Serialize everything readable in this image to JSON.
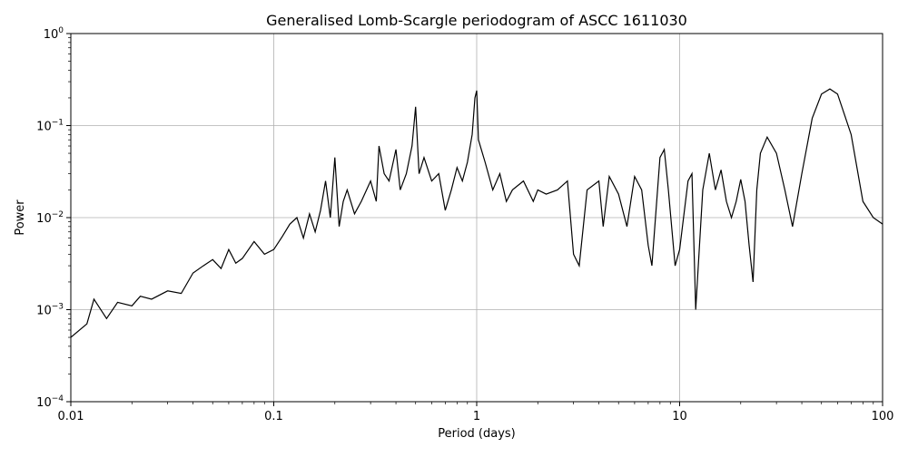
{
  "chart_data": {
    "type": "line",
    "title": "Generalised Lomb-Scargle periodogram of ASCC 1611030",
    "xlabel": "Period (days)",
    "ylabel": "Power",
    "xscale": "log",
    "yscale": "log",
    "xlim": [
      0.01,
      100
    ],
    "ylim": [
      0.0001,
      1
    ],
    "grid": true,
    "line_color": "#000000",
    "xticks": [
      {
        "value": 0.01,
        "label": "0.01"
      },
      {
        "value": 0.1,
        "label": "0.1"
      },
      {
        "value": 1,
        "label": "1"
      },
      {
        "value": 10,
        "label": "10"
      },
      {
        "value": 100,
        "label": "100"
      }
    ],
    "yticks": [
      {
        "value": 0.0001,
        "base": "10",
        "exp": "−4"
      },
      {
        "value": 0.001,
        "base": "10",
        "exp": "−3"
      },
      {
        "value": 0.01,
        "base": "10",
        "exp": "−2"
      },
      {
        "value": 0.1,
        "base": "10",
        "exp": "−1"
      },
      {
        "value": 1,
        "base": "10",
        "exp": "0"
      }
    ],
    "series": [
      {
        "points": [
          [
            0.01,
            0.0005
          ],
          [
            0.012,
            0.0007
          ],
          [
            0.013,
            0.0013
          ],
          [
            0.015,
            0.0008
          ],
          [
            0.017,
            0.0012
          ],
          [
            0.02,
            0.0011
          ],
          [
            0.022,
            0.0014
          ],
          [
            0.025,
            0.0013
          ],
          [
            0.03,
            0.0016
          ],
          [
            0.035,
            0.0015
          ],
          [
            0.04,
            0.0025
          ],
          [
            0.045,
            0.003
          ],
          [
            0.05,
            0.0035
          ],
          [
            0.055,
            0.0028
          ],
          [
            0.06,
            0.0045
          ],
          [
            0.065,
            0.0032
          ],
          [
            0.07,
            0.0036
          ],
          [
            0.08,
            0.0055
          ],
          [
            0.09,
            0.004
          ],
          [
            0.1,
            0.0045
          ],
          [
            0.11,
            0.0062
          ],
          [
            0.12,
            0.0085
          ],
          [
            0.13,
            0.01
          ],
          [
            0.14,
            0.006
          ],
          [
            0.15,
            0.011
          ],
          [
            0.16,
            0.007
          ],
          [
            0.17,
            0.012
          ],
          [
            0.18,
            0.025
          ],
          [
            0.19,
            0.01
          ],
          [
            0.2,
            0.045
          ],
          [
            0.21,
            0.008
          ],
          [
            0.22,
            0.015
          ],
          [
            0.23,
            0.02
          ],
          [
            0.25,
            0.011
          ],
          [
            0.27,
            0.015
          ],
          [
            0.3,
            0.025
          ],
          [
            0.32,
            0.015
          ],
          [
            0.33,
            0.06
          ],
          [
            0.35,
            0.03
          ],
          [
            0.37,
            0.025
          ],
          [
            0.4,
            0.055
          ],
          [
            0.42,
            0.02
          ],
          [
            0.45,
            0.03
          ],
          [
            0.48,
            0.06
          ],
          [
            0.5,
            0.16
          ],
          [
            0.52,
            0.03
          ],
          [
            0.55,
            0.045
          ],
          [
            0.6,
            0.025
          ],
          [
            0.65,
            0.03
          ],
          [
            0.7,
            0.012
          ],
          [
            0.75,
            0.02
          ],
          [
            0.8,
            0.035
          ],
          [
            0.85,
            0.025
          ],
          [
            0.9,
            0.04
          ],
          [
            0.95,
            0.08
          ],
          [
            0.98,
            0.2
          ],
          [
            1.0,
            0.24
          ],
          [
            1.02,
            0.07
          ],
          [
            1.1,
            0.04
          ],
          [
            1.2,
            0.02
          ],
          [
            1.3,
            0.03
          ],
          [
            1.4,
            0.015
          ],
          [
            1.5,
            0.02
          ],
          [
            1.7,
            0.025
          ],
          [
            1.9,
            0.015
          ],
          [
            2.0,
            0.02
          ],
          [
            2.2,
            0.018
          ],
          [
            2.5,
            0.02
          ],
          [
            2.8,
            0.025
          ],
          [
            3.0,
            0.004
          ],
          [
            3.2,
            0.003
          ],
          [
            3.5,
            0.02
          ],
          [
            4.0,
            0.025
          ],
          [
            4.2,
            0.008
          ],
          [
            4.5,
            0.028
          ],
          [
            5.0,
            0.018
          ],
          [
            5.5,
            0.008
          ],
          [
            6.0,
            0.028
          ],
          [
            6.5,
            0.02
          ],
          [
            7.0,
            0.005
          ],
          [
            7.3,
            0.003
          ],
          [
            8.0,
            0.045
          ],
          [
            8.4,
            0.055
          ],
          [
            8.8,
            0.02
          ],
          [
            9.5,
            0.003
          ],
          [
            10.0,
            0.0045
          ],
          [
            11.0,
            0.025
          ],
          [
            11.5,
            0.03
          ],
          [
            12.0,
            0.001
          ],
          [
            13.0,
            0.02
          ],
          [
            14.0,
            0.05
          ],
          [
            15.0,
            0.02
          ],
          [
            16.0,
            0.033
          ],
          [
            17.0,
            0.015
          ],
          [
            18.0,
            0.01
          ],
          [
            19.0,
            0.015
          ],
          [
            20.0,
            0.026
          ],
          [
            21.0,
            0.015
          ],
          [
            22.0,
            0.005
          ],
          [
            23.0,
            0.002
          ],
          [
            24.0,
            0.02
          ],
          [
            25.0,
            0.05
          ],
          [
            27.0,
            0.075
          ],
          [
            30.0,
            0.05
          ],
          [
            33.0,
            0.02
          ],
          [
            36.0,
            0.008
          ],
          [
            40.0,
            0.03
          ],
          [
            45.0,
            0.12
          ],
          [
            50.0,
            0.22
          ],
          [
            55.0,
            0.25
          ],
          [
            60.0,
            0.22
          ],
          [
            70.0,
            0.08
          ],
          [
            80.0,
            0.015
          ],
          [
            90.0,
            0.01
          ],
          [
            100.0,
            0.0085
          ]
        ]
      }
    ]
  }
}
